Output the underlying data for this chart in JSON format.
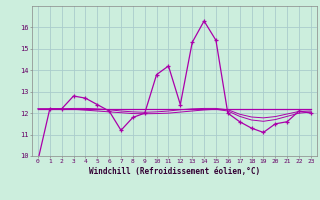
{
  "xlabel": "Windchill (Refroidissement éolien,°C)",
  "bg_color": "#cceedd",
  "grid_color": "#aacccc",
  "line_color": "#aa00aa",
  "x_hours": [
    0,
    1,
    2,
    3,
    4,
    5,
    6,
    7,
    8,
    9,
    10,
    11,
    12,
    13,
    14,
    15,
    16,
    17,
    18,
    19,
    20,
    21,
    22,
    23
  ],
  "windchill": [
    9.8,
    12.2,
    12.2,
    12.8,
    12.7,
    12.4,
    12.1,
    11.2,
    11.8,
    12.0,
    13.8,
    14.2,
    12.4,
    15.3,
    16.3,
    15.4,
    12.0,
    11.6,
    11.3,
    11.1,
    11.5,
    11.6,
    12.1,
    12.0
  ],
  "line2": [
    12.2,
    12.2,
    12.2,
    12.2,
    12.2,
    12.2,
    12.2,
    12.2,
    12.2,
    12.2,
    12.2,
    12.2,
    12.2,
    12.2,
    12.2,
    12.2,
    12.2,
    12.2,
    12.2,
    12.2,
    12.2,
    12.2,
    12.2,
    12.2
  ],
  "line3": [
    12.2,
    12.2,
    12.2,
    12.18,
    12.14,
    12.1,
    12.06,
    12.02,
    11.98,
    11.97,
    11.98,
    12.0,
    12.05,
    12.1,
    12.15,
    12.18,
    12.1,
    11.85,
    11.68,
    11.62,
    11.7,
    11.85,
    12.0,
    12.05
  ],
  "line4": [
    12.2,
    12.2,
    12.2,
    12.22,
    12.22,
    12.2,
    12.16,
    12.1,
    12.06,
    12.04,
    12.06,
    12.1,
    12.16,
    12.2,
    12.22,
    12.22,
    12.16,
    11.95,
    11.82,
    11.78,
    11.84,
    11.96,
    12.08,
    12.1
  ],
  "ylim": [
    10,
    17
  ],
  "yticks": [
    10,
    11,
    12,
    13,
    14,
    15,
    16
  ],
  "xlim": [
    -0.5,
    23.5
  ],
  "figsize": [
    3.2,
    2.0
  ],
  "dpi": 100
}
